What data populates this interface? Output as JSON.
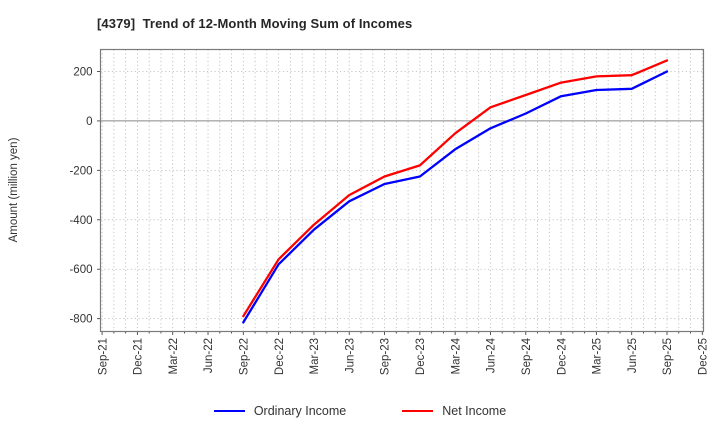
{
  "chart_data": {
    "type": "line",
    "title": "[4379]  Trend of 12-Month Moving Sum of Incomes",
    "ylabel": "Amount (million yen)",
    "xlabel": "",
    "categories": [
      "Sep-21",
      "Dec-21",
      "Mar-22",
      "Jun-22",
      "Sep-22",
      "Dec-22",
      "Mar-23",
      "Jun-23",
      "Sep-23",
      "Dec-23",
      "Mar-24",
      "Jun-24",
      "Sep-24",
      "Dec-24",
      "Mar-25",
      "Jun-25",
      "Sep-25",
      "Dec-25"
    ],
    "series": [
      {
        "name": "Ordinary Income",
        "color": "#0000ff",
        "first_category_index": 4,
        "values": [
          -815,
          -580,
          -440,
          -325,
          -255,
          -225,
          -115,
          -30,
          30,
          100,
          125,
          130,
          200
        ]
      },
      {
        "name": "Net Income",
        "color": "#ff0000",
        "first_category_index": 4,
        "values": [
          -790,
          -560,
          -420,
          -300,
          -225,
          -180,
          -50,
          55,
          105,
          155,
          180,
          185,
          245
        ]
      }
    ],
    "yticks": [
      200,
      0,
      -200,
      -400,
      -600,
      -800
    ],
    "ylim": [
      -852,
      289
    ],
    "grid": "dotted; vertical line every month, horizontal every 200; solid line at 0",
    "legend_position": "bottom-center",
    "colors": {
      "grid": "#b5b5b5",
      "zero_line": "#888888",
      "border": "#7a7a7a",
      "tick_text": "#333333",
      "title_text": "#262626"
    }
  }
}
